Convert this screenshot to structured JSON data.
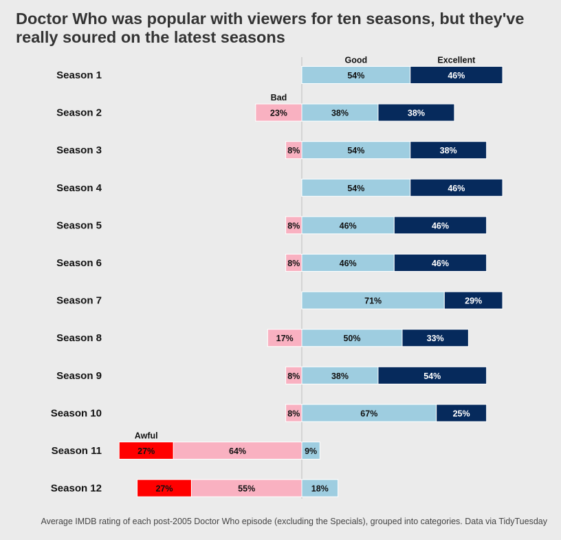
{
  "title": "Doctor Who was popular with viewers for ten seasons, but they've really soured on the latest seasons",
  "caption": "Average IMDB rating of each post-2005 Doctor Who episode (excluding the Specials), grouped into categories. Data via TidyTuesday",
  "colors": {
    "Awful": "#ff0000",
    "Bad": "#f9b1c1",
    "Good": "#9ecde0",
    "Excellent": "#062a5c"
  },
  "chart_data": {
    "type": "bar",
    "orientation": "horizontal",
    "stacking": "diverging",
    "categories": [
      "Season 1",
      "Season 2",
      "Season 3",
      "Season 4",
      "Season 5",
      "Season 6",
      "Season 7",
      "Season 8",
      "Season 9",
      "Season 10",
      "Season 11",
      "Season 12"
    ],
    "series": [
      {
        "name": "Awful",
        "values": [
          0,
          0,
          0,
          0,
          0,
          0,
          0,
          0,
          0,
          0,
          27,
          27
        ],
        "side": "negative"
      },
      {
        "name": "Bad",
        "values": [
          0,
          23,
          8,
          0,
          8,
          8,
          0,
          17,
          8,
          8,
          64,
          55
        ],
        "side": "negative"
      },
      {
        "name": "Good",
        "values": [
          54,
          38,
          54,
          54,
          46,
          46,
          71,
          50,
          38,
          67,
          9,
          18
        ],
        "side": "positive"
      },
      {
        "name": "Excellent",
        "values": [
          46,
          38,
          38,
          46,
          46,
          46,
          29,
          33,
          54,
          25,
          0,
          0
        ],
        "side": "positive"
      }
    ],
    "category_labels": [
      {
        "name": "Good",
        "season": "Season 1"
      },
      {
        "name": "Excellent",
        "season": "Season 1"
      },
      {
        "name": "Bad",
        "season": "Season 2"
      },
      {
        "name": "Awful",
        "season": "Season 11"
      }
    ],
    "value_suffix": "%",
    "grid": false,
    "legend": "none"
  }
}
